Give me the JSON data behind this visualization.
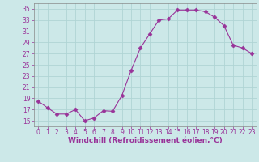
{
  "x": [
    0,
    1,
    2,
    3,
    4,
    5,
    6,
    7,
    8,
    9,
    10,
    11,
    12,
    13,
    14,
    15,
    16,
    17,
    18,
    19,
    20,
    21,
    22,
    23
  ],
  "y": [
    18.5,
    17.3,
    16.2,
    16.2,
    17.0,
    15.0,
    15.5,
    16.8,
    16.7,
    19.5,
    24.0,
    28.0,
    30.5,
    33.0,
    33.2,
    34.8,
    34.8,
    34.8,
    34.5,
    33.5,
    32.0,
    28.5,
    28.0,
    27.0
  ],
  "line_color": "#993399",
  "marker": "D",
  "marker_size": 2.5,
  "bg_color": "#cce8e8",
  "grid_color": "#b0d4d4",
  "xlabel": "Windchill (Refroidissement éolien,°C)",
  "xlabel_color": "#993399",
  "tick_color": "#993399",
  "ylim": [
    14,
    36
  ],
  "yticks": [
    15,
    17,
    19,
    21,
    23,
    25,
    27,
    29,
    31,
    33,
    35
  ],
  "xticks": [
    0,
    1,
    2,
    3,
    4,
    5,
    6,
    7,
    8,
    9,
    10,
    11,
    12,
    13,
    14,
    15,
    16,
    17,
    18,
    19,
    20,
    21,
    22,
    23
  ],
  "xlabel_fontsize": 6.5,
  "tick_fontsize": 5.5
}
